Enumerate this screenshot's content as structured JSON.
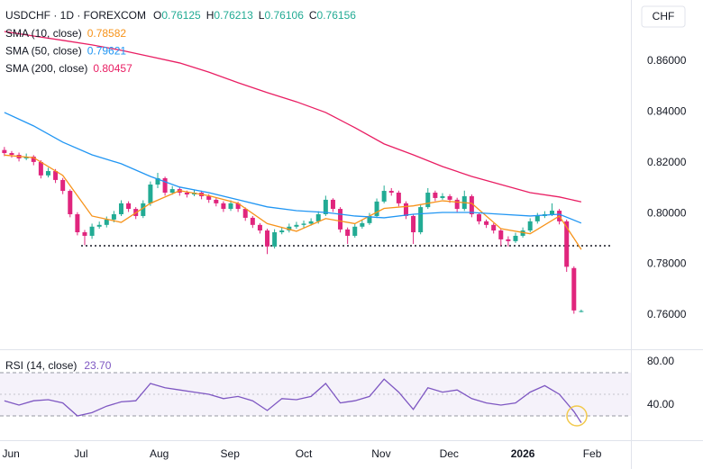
{
  "chart_data": {
    "type": "candlestick",
    "title": "USDCHF · 1D · FOREXCOM",
    "ohlc_labels": [
      "O",
      "H",
      "L",
      "C"
    ],
    "currency": "CHF",
    "up_color": "#22ab94",
    "down_color": "#e0257d",
    "candles": [
      [
        0.825,
        0.8262,
        0.8226,
        0.8238
      ],
      [
        0.8238,
        0.8246,
        0.822,
        0.8231
      ],
      [
        0.8231,
        0.824,
        0.8205,
        0.8217
      ],
      [
        0.8217,
        0.8236,
        0.821,
        0.8224
      ],
      [
        0.8224,
        0.823,
        0.819,
        0.8203
      ],
      [
        0.8203,
        0.821,
        0.8138,
        0.815
      ],
      [
        0.815,
        0.818,
        0.8142,
        0.8167
      ],
      [
        0.8167,
        0.8175,
        0.812,
        0.8132
      ],
      [
        0.8132,
        0.814,
        0.8076,
        0.8089
      ],
      [
        0.8089,
        0.8095,
        0.7985,
        0.7997
      ],
      [
        0.7997,
        0.8005,
        0.7914,
        0.7926
      ],
      [
        0.7926,
        0.7935,
        0.7875,
        0.7912
      ],
      [
        0.7912,
        0.796,
        0.79,
        0.7948
      ],
      [
        0.7948,
        0.7968,
        0.794,
        0.7955
      ],
      [
        0.7955,
        0.7988,
        0.7945,
        0.7976
      ],
      [
        0.7976,
        0.801,
        0.7965,
        0.7997
      ],
      [
        0.7997,
        0.8052,
        0.799,
        0.804
      ],
      [
        0.804,
        0.8048,
        0.8006,
        0.8018
      ],
      [
        0.8018,
        0.8025,
        0.7978,
        0.799
      ],
      [
        0.799,
        0.8052,
        0.7982,
        0.804
      ],
      [
        0.804,
        0.8126,
        0.803,
        0.8114
      ],
      [
        0.8114,
        0.816,
        0.81,
        0.8139
      ],
      [
        0.8139,
        0.8145,
        0.807,
        0.8082
      ],
      [
        0.8082,
        0.8108,
        0.8074,
        0.8096
      ],
      [
        0.8096,
        0.8104,
        0.807,
        0.8082
      ],
      [
        0.8082,
        0.809,
        0.8063,
        0.8075
      ],
      [
        0.8075,
        0.8094,
        0.8068,
        0.8082
      ],
      [
        0.8082,
        0.809,
        0.8056,
        0.8068
      ],
      [
        0.8068,
        0.8076,
        0.8042,
        0.8054
      ],
      [
        0.8054,
        0.8062,
        0.8028,
        0.804
      ],
      [
        0.804,
        0.8048,
        0.8006,
        0.8018
      ],
      [
        0.8018,
        0.8052,
        0.801,
        0.804
      ],
      [
        0.804,
        0.8046,
        0.8006,
        0.8018
      ],
      [
        0.8018,
        0.8024,
        0.7971,
        0.7983
      ],
      [
        0.7983,
        0.799,
        0.7943,
        0.7955
      ],
      [
        0.7955,
        0.7962,
        0.7921,
        0.7933
      ],
      [
        0.7933,
        0.794,
        0.784,
        0.787
      ],
      [
        0.787,
        0.7938,
        0.7862,
        0.7926
      ],
      [
        0.7926,
        0.7945,
        0.7918,
        0.7933
      ],
      [
        0.7933,
        0.796,
        0.7925,
        0.7948
      ],
      [
        0.7948,
        0.7967,
        0.794,
        0.7955
      ],
      [
        0.7955,
        0.7972,
        0.7944,
        0.796
      ],
      [
        0.796,
        0.7981,
        0.7952,
        0.7969
      ],
      [
        0.7969,
        0.8009,
        0.796,
        0.7997
      ],
      [
        0.7997,
        0.807,
        0.799,
        0.8054
      ],
      [
        0.8054,
        0.806,
        0.8006,
        0.8018
      ],
      [
        0.8018,
        0.8025,
        0.7925,
        0.7937
      ],
      [
        0.7937,
        0.7945,
        0.788,
        0.7912
      ],
      [
        0.7912,
        0.796,
        0.7905,
        0.7948
      ],
      [
        0.7948,
        0.7974,
        0.794,
        0.7962
      ],
      [
        0.7962,
        0.8002,
        0.7955,
        0.799
      ],
      [
        0.799,
        0.8059,
        0.7982,
        0.8047
      ],
      [
        0.8047,
        0.811,
        0.804,
        0.8089
      ],
      [
        0.8089,
        0.81,
        0.807,
        0.8082
      ],
      [
        0.8082,
        0.809,
        0.8028,
        0.804
      ],
      [
        0.804,
        0.8048,
        0.7978,
        0.799
      ],
      [
        0.799,
        0.7998,
        0.788,
        0.7926
      ],
      [
        0.7926,
        0.8037,
        0.7918,
        0.8025
      ],
      [
        0.8025,
        0.81,
        0.8018,
        0.8082
      ],
      [
        0.8082,
        0.809,
        0.8049,
        0.8061
      ],
      [
        0.8061,
        0.808,
        0.8054,
        0.8068
      ],
      [
        0.8068,
        0.8076,
        0.8042,
        0.8054
      ],
      [
        0.8054,
        0.8062,
        0.8006,
        0.8018
      ],
      [
        0.8018,
        0.809,
        0.801,
        0.8068
      ],
      [
        0.8068,
        0.8075,
        0.7985,
        0.7997
      ],
      [
        0.7997,
        0.8004,
        0.7957,
        0.7969
      ],
      [
        0.7969,
        0.7976,
        0.7943,
        0.7955
      ],
      [
        0.7955,
        0.7962,
        0.7921,
        0.7933
      ],
      [
        0.7933,
        0.794,
        0.7872,
        0.7898
      ],
      [
        0.7898,
        0.791,
        0.787,
        0.7891
      ],
      [
        0.7891,
        0.7924,
        0.7884,
        0.7912
      ],
      [
        0.7912,
        0.7945,
        0.7905,
        0.7933
      ],
      [
        0.7933,
        0.7981,
        0.7926,
        0.7969
      ],
      [
        0.7969,
        0.8002,
        0.796,
        0.799
      ],
      [
        0.799,
        0.8009,
        0.7982,
        0.7997
      ],
      [
        0.7997,
        0.804,
        0.799,
        0.8011
      ],
      [
        0.8011,
        0.8018,
        0.7957,
        0.7969
      ],
      [
        0.7969,
        0.7976,
        0.777,
        0.779
      ],
      [
        0.7785,
        0.7792,
        0.7605,
        0.7618
      ],
      [
        0.76125,
        0.76213,
        0.76106,
        0.76156
      ]
    ],
    "series": [
      {
        "name": "SMA (10, close)",
        "color": "#f7931a",
        "x": [
          0,
          4,
          8,
          12,
          16,
          20,
          24,
          28,
          32,
          36,
          40,
          44,
          48,
          52,
          56,
          60,
          64,
          68,
          72,
          76,
          79
        ],
        "values": [
          0.823,
          0.822,
          0.815,
          0.799,
          0.7965,
          0.804,
          0.809,
          0.807,
          0.804,
          0.796,
          0.793,
          0.798,
          0.796,
          0.802,
          0.803,
          0.805,
          0.804,
          0.794,
          0.792,
          0.799,
          0.78582
        ]
      },
      {
        "name": "SMA (50, close)",
        "color": "#2196f3",
        "x": [
          0,
          4,
          8,
          12,
          16,
          20,
          24,
          28,
          32,
          36,
          40,
          44,
          48,
          52,
          56,
          60,
          64,
          68,
          72,
          76,
          79
        ],
        "values": [
          0.8398,
          0.8345,
          0.8281,
          0.8231,
          0.8196,
          0.8146,
          0.8104,
          0.8082,
          0.8054,
          0.8026,
          0.8011,
          0.8004,
          0.799,
          0.7983,
          0.7997,
          0.8004,
          0.8004,
          0.7997,
          0.799,
          0.7997,
          0.79621
        ]
      },
      {
        "name": "SMA (200, close)",
        "color": "#e91e63",
        "x": [
          0,
          4,
          8,
          12,
          16,
          20,
          24,
          28,
          32,
          36,
          40,
          44,
          48,
          52,
          56,
          60,
          64,
          68,
          72,
          76,
          79
        ],
        "values": [
          0.8717,
          0.8699,
          0.8682,
          0.8664,
          0.8643,
          0.8618,
          0.8593,
          0.8557,
          0.8515,
          0.8476,
          0.844,
          0.8398,
          0.8338,
          0.8274,
          0.8231,
          0.8185,
          0.8146,
          0.8114,
          0.8082,
          0.8065,
          0.80457
        ]
      }
    ],
    "support_line": 0.7873,
    "xlim": [
      -0.6,
      85.8
    ],
    "xticks": [
      {
        "value": 0.9,
        "label": "Jun"
      },
      {
        "value": 10.5,
        "label": "Jul"
      },
      {
        "value": 21.2,
        "label": "Aug"
      },
      {
        "value": 30.9,
        "label": "Sep"
      },
      {
        "value": 41,
        "label": "Oct"
      },
      {
        "value": 51.6,
        "label": "Nov"
      },
      {
        "value": 60.9,
        "label": "Dec"
      },
      {
        "value": 71,
        "label": "2026"
      },
      {
        "value": 80.5,
        "label": "Feb"
      }
    ],
    "ylim": [
      0.7465,
      0.8841
    ],
    "yticks": [
      {
        "value": 0.86,
        "label": "0.86000"
      },
      {
        "value": 0.84,
        "label": "0.84000"
      },
      {
        "value": 0.82,
        "label": "0.82000"
      },
      {
        "value": 0.8,
        "label": "0.80000"
      },
      {
        "value": 0.78,
        "label": "0.78000"
      },
      {
        "value": 0.76,
        "label": "0.76000"
      }
    ],
    "grid": false,
    "rsi": {
      "name": "RSI (14, close)",
      "color": "#7e57c2",
      "x": [
        0,
        2,
        4,
        6,
        8,
        10,
        12,
        14,
        16,
        18,
        20,
        22,
        24,
        26,
        28,
        30,
        32,
        34,
        36,
        38,
        40,
        42,
        44,
        46,
        48,
        50,
        52,
        54,
        56,
        58,
        60,
        62,
        64,
        66,
        68,
        70,
        72,
        74,
        76,
        78,
        79
      ],
      "values": [
        44,
        40,
        44,
        45,
        42,
        30,
        33,
        39,
        43,
        44,
        60,
        56,
        54,
        52,
        50,
        46,
        48,
        44,
        35,
        46,
        45,
        48,
        60,
        42,
        44,
        48,
        64,
        52,
        36,
        56,
        52,
        54,
        46,
        42,
        40,
        42,
        52,
        58,
        50,
        34,
        23.7
      ],
      "value_labels": [
        null,
        null,
        null,
        null,
        null,
        null,
        null,
        null,
        null,
        null,
        null,
        null,
        null,
        null,
        null,
        null,
        null,
        null,
        null,
        null,
        null,
        null,
        null,
        null,
        null,
        null,
        null,
        null,
        null,
        null,
        null,
        null,
        null,
        null,
        null,
        null,
        null,
        null,
        null,
        null,
        "23.70"
      ],
      "ylim": [
        10,
        90
      ],
      "yticks": [
        {
          "value": 80,
          "label": "80.00"
        },
        {
          "value": 40,
          "label": "40.00"
        }
      ],
      "bands": [
        30,
        70
      ],
      "midline": 50
    }
  }
}
